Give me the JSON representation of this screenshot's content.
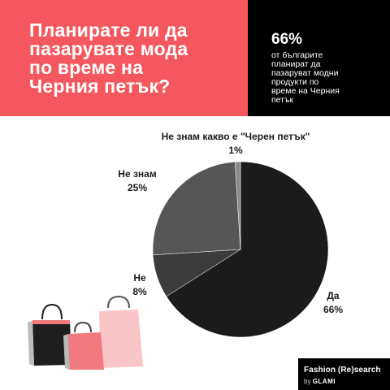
{
  "header": {
    "question_lines": [
      "Планирате ли да",
      "пазарувате мода",
      "по време на",
      "Черния петък?"
    ],
    "stat_value": "66%",
    "stat_desc_lines": [
      "от българите",
      "планират да",
      "пазаруват модни",
      "продукти по",
      "време на Черния",
      "петък"
    ]
  },
  "chart_data": {
    "type": "pie",
    "slices": [
      {
        "label": "Да",
        "value": 66,
        "value_label": "66%",
        "color": "#1b1b1b"
      },
      {
        "label": "Не",
        "value": 8,
        "value_label": "8%",
        "color": "#3c3c3c"
      },
      {
        "label": "Не знам",
        "value": 25,
        "value_label": "25%",
        "color": "#565656"
      },
      {
        "label": "Не знам какво е \"Черен петък\"",
        "value": 1,
        "value_label": "1%",
        "color": "#8a8a8a"
      }
    ]
  },
  "illustration": {
    "name": "shopping-bags",
    "colors": {
      "pink": "#f9c5c9",
      "coral": "#f27a7f",
      "black": "#1e1e1e",
      "gray": "#b8b8b8"
    }
  },
  "brand": {
    "title": "Fashion (Re)search",
    "by": "by",
    "name": "GLAMI"
  }
}
